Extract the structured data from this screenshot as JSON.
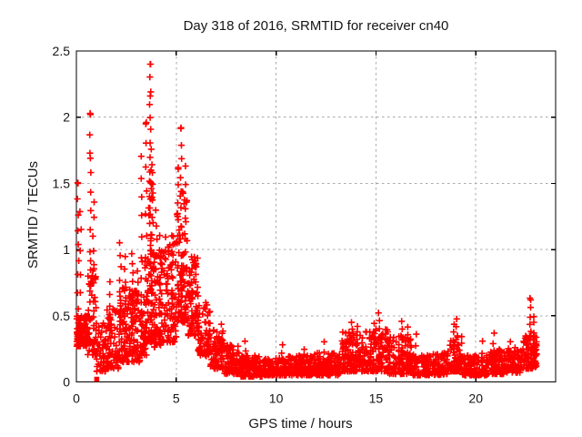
{
  "chart_data": {
    "type": "scatter",
    "title": "Day 318 of 2016, SRMTID for receiver cn40",
    "xlabel": "GPS time / hours",
    "ylabel": "SRMTID / TECUs",
    "xlim": [
      0,
      24
    ],
    "ylim": [
      0,
      2.5
    ],
    "xticks": [
      {
        "v": 0,
        "label": "0"
      },
      {
        "v": 5,
        "label": "5"
      },
      {
        "v": 10,
        "label": "10"
      },
      {
        "v": 15,
        "label": "15"
      },
      {
        "v": 20,
        "label": "20"
      }
    ],
    "yticks": [
      {
        "v": 0,
        "label": "0"
      },
      {
        "v": 0.5,
        "label": "0.5"
      },
      {
        "v": 1,
        "label": "1"
      },
      {
        "v": 1.5,
        "label": "1.5"
      },
      {
        "v": 2,
        "label": "2"
      },
      {
        "v": 2.5,
        "label": "2.5"
      }
    ],
    "grid": {
      "on": true,
      "style": "dotted",
      "color": "#a9a9a9"
    },
    "legend": "none",
    "marker": {
      "glyph": "plus",
      "color": "#ff0000",
      "size": 7.2,
      "stroke_width": 1.6
    },
    "border_color": "#000000",
    "data_time_range_hours": [
      0,
      23.05
    ],
    "peak_points": [
      {
        "t": 3.7,
        "v": 2.4
      },
      {
        "t": 3.7,
        "v": 2.16
      },
      {
        "t": 0.7,
        "v": 2.02
      },
      {
        "t": 3.5,
        "v": 1.96
      },
      {
        "t": 5.24,
        "v": 1.92
      },
      {
        "t": 0.7,
        "v": 1.69
      },
      {
        "t": 5.1,
        "v": 1.62
      },
      {
        "t": 0.08,
        "v": 1.5
      },
      {
        "t": 22.75,
        "v": 0.62
      }
    ],
    "special_points": [
      {
        "t": 1.02,
        "v": 0.02,
        "marker": "square",
        "size": 5.5
      }
    ],
    "points_spec": {
      "note": "Dense scatter estimated from pixels. segments: [t0,t1,yLow,yHigh,count] sampled toward yLow; streaks: [t,yBottom,yTop,count] vertical bursts.",
      "seed": 318,
      "segments": [
        [
          0.0,
          0.55,
          0.27,
          0.5,
          110
        ],
        [
          0.55,
          1.0,
          0.2,
          0.95,
          60
        ],
        [
          1.0,
          1.5,
          0.08,
          0.45,
          55
        ],
        [
          1.5,
          2.1,
          0.1,
          0.55,
          70
        ],
        [
          2.1,
          2.6,
          0.15,
          0.75,
          70
        ],
        [
          2.6,
          3.2,
          0.15,
          0.7,
          75
        ],
        [
          3.2,
          3.6,
          0.2,
          0.95,
          55
        ],
        [
          3.6,
          3.85,
          0.3,
          1.6,
          60
        ],
        [
          3.85,
          4.35,
          0.25,
          1.0,
          65
        ],
        [
          4.35,
          5.0,
          0.3,
          1.1,
          80
        ],
        [
          5.0,
          5.6,
          0.45,
          1.45,
          85
        ],
        [
          5.6,
          6.1,
          0.35,
          0.95,
          75
        ],
        [
          6.1,
          6.7,
          0.2,
          0.6,
          70
        ],
        [
          6.7,
          7.4,
          0.1,
          0.4,
          70
        ],
        [
          7.4,
          8.2,
          0.06,
          0.28,
          85
        ],
        [
          8.2,
          9.4,
          0.04,
          0.2,
          130
        ],
        [
          9.4,
          10.6,
          0.05,
          0.18,
          130
        ],
        [
          10.6,
          11.8,
          0.05,
          0.2,
          130
        ],
        [
          11.8,
          13.3,
          0.05,
          0.22,
          150
        ],
        [
          13.3,
          14.4,
          0.08,
          0.38,
          120
        ],
        [
          14.4,
          15.6,
          0.08,
          0.4,
          120
        ],
        [
          15.6,
          16.8,
          0.06,
          0.35,
          120
        ],
        [
          16.8,
          18.6,
          0.05,
          0.22,
          160
        ],
        [
          18.6,
          19.3,
          0.08,
          0.35,
          70
        ],
        [
          19.3,
          20.6,
          0.05,
          0.2,
          120
        ],
        [
          20.6,
          21.4,
          0.06,
          0.25,
          85
        ],
        [
          21.4,
          22.4,
          0.07,
          0.26,
          100
        ],
        [
          22.4,
          23.05,
          0.1,
          0.35,
          80
        ]
      ],
      "streaks": [
        [
          0.08,
          0.45,
          1.5,
          10
        ],
        [
          0.21,
          0.5,
          1.3,
          6
        ],
        [
          0.7,
          0.85,
          2.02,
          9
        ],
        [
          0.85,
          0.5,
          1.35,
          8
        ],
        [
          1.7,
          0.3,
          0.75,
          6
        ],
        [
          2.2,
          0.4,
          1.05,
          8
        ],
        [
          2.45,
          0.4,
          0.95,
          7
        ],
        [
          2.8,
          0.45,
          0.97,
          8
        ],
        [
          3.05,
          0.4,
          0.85,
          6
        ],
        [
          3.27,
          0.5,
          1.69,
          9
        ],
        [
          3.5,
          0.6,
          1.96,
          9
        ],
        [
          3.7,
          0.5,
          2.4,
          20
        ],
        [
          3.78,
          0.6,
          1.77,
          10
        ],
        [
          4.0,
          0.4,
          1.3,
          9
        ],
        [
          4.2,
          0.4,
          1.1,
          8
        ],
        [
          4.6,
          0.4,
          0.95,
          7
        ],
        [
          4.8,
          0.5,
          1.1,
          7
        ],
        [
          5.1,
          0.6,
          1.62,
          9
        ],
        [
          5.24,
          0.7,
          1.92,
          11
        ],
        [
          5.44,
          0.6,
          1.62,
          9
        ],
        [
          5.75,
          0.4,
          0.95,
          7
        ],
        [
          6.5,
          0.2,
          0.55,
          5
        ],
        [
          7.3,
          0.15,
          0.45,
          5
        ],
        [
          8.45,
          0.1,
          0.3,
          4
        ],
        [
          10.3,
          0.08,
          0.28,
          4
        ],
        [
          11.4,
          0.08,
          0.25,
          4
        ],
        [
          12.4,
          0.1,
          0.3,
          4
        ],
        [
          13.8,
          0.15,
          0.45,
          6
        ],
        [
          14.05,
          0.15,
          0.42,
          5
        ],
        [
          14.9,
          0.15,
          0.45,
          5
        ],
        [
          15.15,
          0.2,
          0.53,
          6
        ],
        [
          16.3,
          0.15,
          0.45,
          6
        ],
        [
          16.6,
          0.12,
          0.42,
          5
        ],
        [
          17.0,
          0.1,
          0.35,
          4
        ],
        [
          18.9,
          0.15,
          0.44,
          6
        ],
        [
          19.05,
          0.15,
          0.48,
          6
        ],
        [
          20.3,
          0.08,
          0.3,
          4
        ],
        [
          20.9,
          0.1,
          0.36,
          5
        ],
        [
          21.7,
          0.1,
          0.3,
          4
        ],
        [
          22.75,
          0.15,
          0.62,
          9
        ],
        [
          22.9,
          0.15,
          0.5,
          7
        ]
      ]
    }
  }
}
